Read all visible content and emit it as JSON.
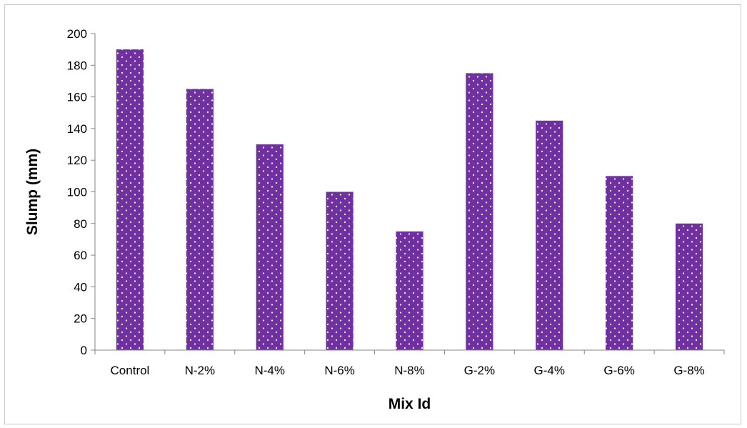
{
  "chart_data": {
    "type": "bar",
    "title": "",
    "xlabel": "Mix Id",
    "ylabel": "Slump (mm)",
    "categories": [
      "Control",
      "N-2%",
      "N-4%",
      "N-6%",
      "N-8%",
      "G-2%",
      "G-4%",
      "G-6%",
      "G-8%"
    ],
    "values": [
      190,
      165,
      130,
      100,
      75,
      175,
      145,
      110,
      80
    ],
    "ylim": [
      0,
      200
    ],
    "yticks": [
      0,
      20,
      40,
      60,
      80,
      100,
      120,
      140,
      160,
      180,
      200
    ],
    "grid": false,
    "legend": "none",
    "bar_color": "#7030a0",
    "bar_pattern": "white-dots"
  }
}
